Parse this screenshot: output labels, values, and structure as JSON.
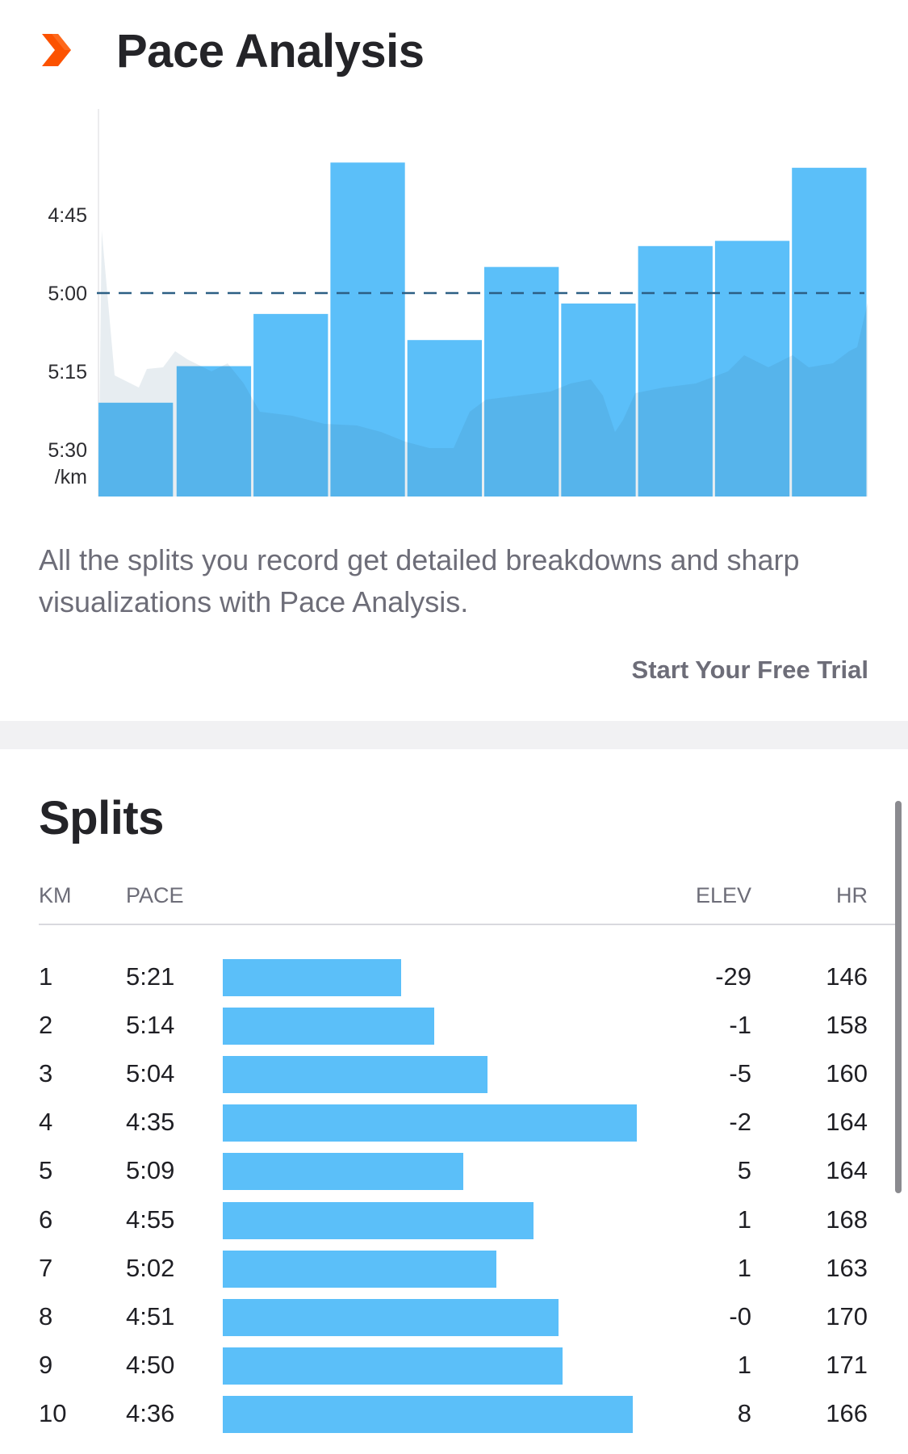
{
  "pace_analysis": {
    "title": "Pace Analysis",
    "description": "All the splits you record get detailed breakdowns and sharp visualizations with Pace Analysis.",
    "cta_label": "Start Your Free Trial",
    "icon": "chevron-right-icon",
    "brand_color": "#fc5200"
  },
  "chart_data": {
    "type": "bar",
    "categories": [
      "1",
      "2",
      "3",
      "4",
      "5",
      "6",
      "7",
      "8",
      "9",
      "10"
    ],
    "values": [
      "5:21",
      "5:14",
      "5:04",
      "4:35",
      "5:09",
      "4:55",
      "5:02",
      "4:51",
      "4:50",
      "4:36"
    ],
    "ytick_labels": [
      "4:45",
      "5:00",
      "5:15",
      "5:30"
    ],
    "ylabel": "/km",
    "reference_line_value": "5:00",
    "reference_line_style": "dashed",
    "bar_color": "#5bbff9",
    "background_area": "elevation profile (gray, unlabeled)"
  },
  "splits": {
    "title": "Splits",
    "columns": {
      "km": "KM",
      "pace": "PACE",
      "elev": "ELEV",
      "hr": "HR"
    },
    "bar_color": "#5bbff9",
    "rows": [
      {
        "km": "1",
        "pace": "5:21",
        "elev": "-29",
        "hr": "146",
        "bar_fraction": 0.43
      },
      {
        "km": "2",
        "pace": "5:14",
        "elev": "-1",
        "hr": "158",
        "bar_fraction": 0.51
      },
      {
        "km": "3",
        "pace": "5:04",
        "elev": "-5",
        "hr": "160",
        "bar_fraction": 0.64
      },
      {
        "km": "4",
        "pace": "4:35",
        "elev": "-2",
        "hr": "164",
        "bar_fraction": 1.0
      },
      {
        "km": "5",
        "pace": "5:09",
        "elev": "5",
        "hr": "164",
        "bar_fraction": 0.58
      },
      {
        "km": "6",
        "pace": "4:55",
        "elev": "1",
        "hr": "168",
        "bar_fraction": 0.75
      },
      {
        "km": "7",
        "pace": "5:02",
        "elev": "1",
        "hr": "163",
        "bar_fraction": 0.66
      },
      {
        "km": "8",
        "pace": "4:51",
        "elev": "-0",
        "hr": "170",
        "bar_fraction": 0.81
      },
      {
        "km": "9",
        "pace": "4:50",
        "elev": "1",
        "hr": "171",
        "bar_fraction": 0.82
      },
      {
        "km": "10",
        "pace": "4:36",
        "elev": "8",
        "hr": "166",
        "bar_fraction": 0.99
      }
    ]
  }
}
